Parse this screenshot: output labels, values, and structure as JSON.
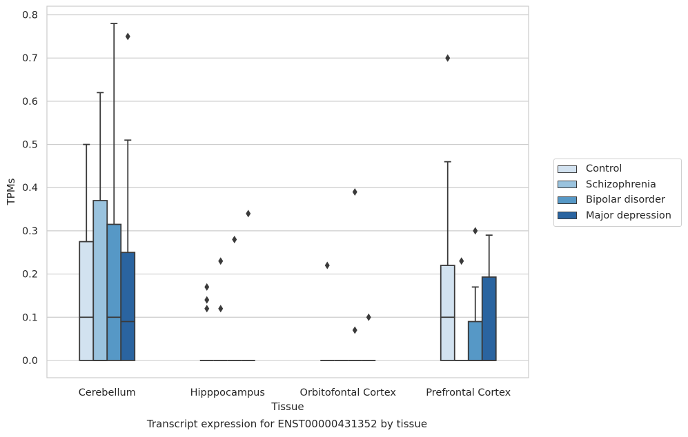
{
  "caption": "Transcript expression for ENST00000431352 by tissue",
  "colors": {
    "Control": "#d2e2f0",
    "Schizophrenia": "#9ac3de",
    "Bipolar disorder": "#5698c6",
    "Major depression": "#2a64a0"
  },
  "chart_data": {
    "type": "box",
    "xlabel": "Tissue",
    "ylabel": "TPMs",
    "ylim": [
      -0.04,
      0.82
    ],
    "yticks": [
      0.0,
      0.1,
      0.2,
      0.3,
      0.4,
      0.5,
      0.6,
      0.7,
      0.8
    ],
    "ytick_labels": [
      "0.0",
      "0.1",
      "0.2",
      "0.3",
      "0.4",
      "0.5",
      "0.6",
      "0.7",
      "0.8"
    ],
    "grid": "horizontal",
    "legend_position": "right",
    "categories": [
      "Cerebellum",
      "Hipppocampus",
      "Orbitofontal Cortex",
      "Prefrontal Cortex"
    ],
    "series": [
      {
        "name": "Control",
        "boxes": [
          {
            "whislo": 0.0,
            "q1": 0.0,
            "med": 0.1,
            "q3": 0.275,
            "whishi": 0.5,
            "fliers": []
          },
          {
            "whislo": 0.0,
            "q1": 0.0,
            "med": 0.0,
            "q3": 0.0,
            "whishi": 0.0,
            "fliers": [
              0.12,
              0.14,
              0.17
            ]
          },
          {
            "whislo": 0.0,
            "q1": 0.0,
            "med": 0.0,
            "q3": 0.0,
            "whishi": 0.0,
            "fliers": [
              0.22
            ]
          },
          {
            "whislo": 0.0,
            "q1": 0.0,
            "med": 0.1,
            "q3": 0.22,
            "whishi": 0.46,
            "fliers": [
              0.7
            ]
          }
        ]
      },
      {
        "name": "Schizophrenia",
        "boxes": [
          {
            "whislo": 0.0,
            "q1": 0.0,
            "med": 0.0,
            "q3": 0.37,
            "whishi": 0.62,
            "fliers": []
          },
          {
            "whislo": 0.0,
            "q1": 0.0,
            "med": 0.0,
            "q3": 0.0,
            "whishi": 0.0,
            "fliers": [
              0.12,
              0.23
            ]
          },
          {
            "whislo": 0.0,
            "q1": 0.0,
            "med": 0.0,
            "q3": 0.0,
            "whishi": 0.0,
            "fliers": []
          },
          {
            "whislo": 0.0,
            "q1": 0.0,
            "med": 0.0,
            "q3": 0.0,
            "whishi": 0.0,
            "fliers": [
              0.23
            ]
          }
        ]
      },
      {
        "name": "Bipolar disorder",
        "boxes": [
          {
            "whislo": 0.0,
            "q1": 0.0,
            "med": 0.1,
            "q3": 0.315,
            "whishi": 0.78,
            "fliers": []
          },
          {
            "whislo": 0.0,
            "q1": 0.0,
            "med": 0.0,
            "q3": 0.0,
            "whishi": 0.0,
            "fliers": [
              0.28
            ]
          },
          {
            "whislo": 0.0,
            "q1": 0.0,
            "med": 0.0,
            "q3": 0.0,
            "whishi": 0.0,
            "fliers": [
              0.07,
              0.39
            ]
          },
          {
            "whislo": 0.0,
            "q1": 0.0,
            "med": 0.0,
            "q3": 0.09,
            "whishi": 0.17,
            "fliers": [
              0.3
            ]
          }
        ]
      },
      {
        "name": "Major depression",
        "boxes": [
          {
            "whislo": 0.0,
            "q1": 0.0,
            "med": 0.09,
            "q3": 0.25,
            "whishi": 0.51,
            "fliers": [
              0.75
            ]
          },
          {
            "whislo": 0.0,
            "q1": 0.0,
            "med": 0.0,
            "q3": 0.0,
            "whishi": 0.0,
            "fliers": [
              0.34
            ]
          },
          {
            "whislo": 0.0,
            "q1": 0.0,
            "med": 0.0,
            "q3": 0.0,
            "whishi": 0.0,
            "fliers": [
              0.1
            ]
          },
          {
            "whislo": 0.0,
            "q1": 0.0,
            "med": 0.0,
            "q3": 0.193,
            "whishi": 0.29,
            "fliers": []
          }
        ]
      }
    ]
  }
}
